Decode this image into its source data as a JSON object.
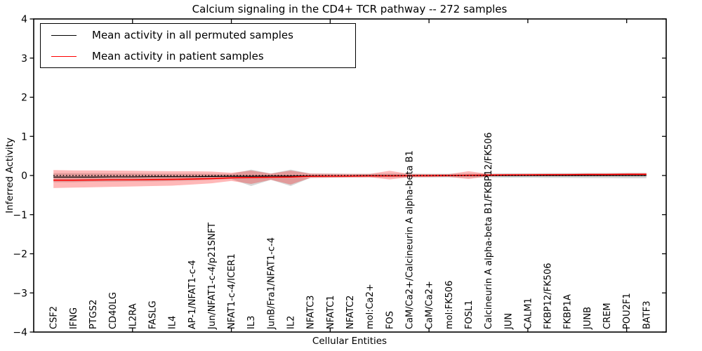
{
  "title": "Calcium signaling in the CD4+ TCR pathway -- 272 samples",
  "chart_data": {
    "type": "line",
    "title": "Calcium signaling in the CD4+ TCR pathway -- 272 samples",
    "xlabel": "Cellular Entities",
    "ylabel": "Inferred Activity",
    "ylim": [
      -4,
      4
    ],
    "xlim": [
      0,
      32
    ],
    "grid": false,
    "legend_position": "upper left",
    "yticks": [
      4,
      3,
      2,
      1,
      0,
      -1,
      -2,
      -3,
      -4
    ],
    "ytick_labels": [
      "4",
      "3",
      "2",
      "1",
      "0",
      "−1",
      "−2",
      "−3",
      "−4"
    ],
    "xticks_major": [
      5,
      10,
      15,
      20,
      25,
      30
    ],
    "zero_line": {
      "y": 0,
      "style": "dotted",
      "color": "#000000"
    },
    "categories": [
      "CSF2",
      "IFNG",
      "PTGS2",
      "CD40LG",
      "IL2RA",
      "FASLG",
      "IL4",
      "AP-1/NFAT1-c-4",
      "Jun/NFAT1-c-4/p21SNFT",
      "NFAT1-c-4/ICER1",
      "IL3",
      "JunB/Fra1/NFAT1-c-4",
      "IL2",
      "NFATC3",
      "NFATC1",
      "NFATC2",
      "mol:Ca2+",
      "FOS",
      "CaM/Ca2+/Calcineurin A alpha-beta B1",
      "CaM/Ca2+",
      "mol:FK506",
      "FOSL1",
      "Calcineurin A alpha-beta B1/FKBP12/FK506",
      "JUN",
      "CALM1",
      "FKBP12/FK506",
      "FKBP1A",
      "JUNB",
      "CREM",
      "POU2F1",
      "BATF3"
    ],
    "series": [
      {
        "name": "Mean activity in all permuted samples",
        "color": "#000000",
        "band_color": "rgba(120,120,120,0.30)",
        "values": [
          -0.04,
          -0.04,
          -0.04,
          -0.035,
          -0.035,
          -0.03,
          -0.03,
          -0.03,
          -0.025,
          -0.02,
          -0.02,
          -0.015,
          -0.015,
          -0.01,
          -0.01,
          -0.01,
          -0.005,
          -0.005,
          -0.005,
          -0.005,
          0,
          0,
          0,
          0,
          0,
          0,
          0,
          0,
          0,
          0,
          0
        ],
        "band_upper": [
          0.06,
          0.06,
          0.06,
          0.055,
          0.055,
          0.05,
          0.05,
          0.05,
          0.045,
          0.04,
          0.15,
          0.05,
          0.15,
          0.05,
          0.05,
          0.045,
          0.045,
          0.05,
          0.045,
          0.045,
          0.045,
          0.05,
          0.05,
          0.055,
          0.055,
          0.06,
          0.06,
          0.065,
          0.065,
          0.07,
          0.07
        ],
        "band_lower": [
          -0.17,
          -0.17,
          -0.16,
          -0.16,
          -0.15,
          -0.15,
          -0.14,
          -0.13,
          -0.11,
          -0.09,
          -0.27,
          -0.11,
          -0.27,
          -0.06,
          -0.055,
          -0.05,
          -0.05,
          -0.05,
          -0.05,
          -0.05,
          -0.05,
          -0.05,
          -0.05,
          -0.055,
          -0.055,
          -0.06,
          -0.06,
          -0.065,
          -0.065,
          -0.07,
          -0.07
        ]
      },
      {
        "name": "Mean activity in patient samples",
        "color": "#ff0000",
        "band_color": "rgba(255,0,0,0.28)",
        "values": [
          -0.12,
          -0.12,
          -0.115,
          -0.11,
          -0.11,
          -0.105,
          -0.1,
          -0.09,
          -0.08,
          -0.06,
          -0.05,
          -0.045,
          -0.04,
          -0.02,
          -0.015,
          -0.015,
          -0.01,
          -0.01,
          -0.005,
          -0.005,
          0,
          0.005,
          0.01,
          0.015,
          0.015,
          0.02,
          0.02,
          0.025,
          0.025,
          0.03,
          0.03
        ],
        "band_upper": [
          0.14,
          0.13,
          0.13,
          0.125,
          0.12,
          0.115,
          0.11,
          0.11,
          0.1,
          0.07,
          0.125,
          0.05,
          0.125,
          0.05,
          0.045,
          0.04,
          0.04,
          0.12,
          0.04,
          0.035,
          0.035,
          0.11,
          0.04,
          0.04,
          0.045,
          0.045,
          0.05,
          0.05,
          0.05,
          0.055,
          0.055
        ],
        "band_lower": [
          -0.32,
          -0.31,
          -0.3,
          -0.29,
          -0.28,
          -0.27,
          -0.26,
          -0.23,
          -0.2,
          -0.14,
          -0.215,
          -0.11,
          -0.23,
          -0.06,
          -0.055,
          -0.05,
          -0.045,
          -0.1,
          -0.045,
          -0.04,
          -0.035,
          -0.09,
          -0.02,
          -0.015,
          -0.01,
          -0.01,
          0,
          0,
          0,
          0.005,
          0.005
        ]
      }
    ]
  },
  "legend": {
    "entries": [
      {
        "label": "Mean activity in all permuted samples",
        "color": "#000000"
      },
      {
        "label": "Mean activity in patient samples",
        "color": "#ff0000"
      }
    ]
  }
}
